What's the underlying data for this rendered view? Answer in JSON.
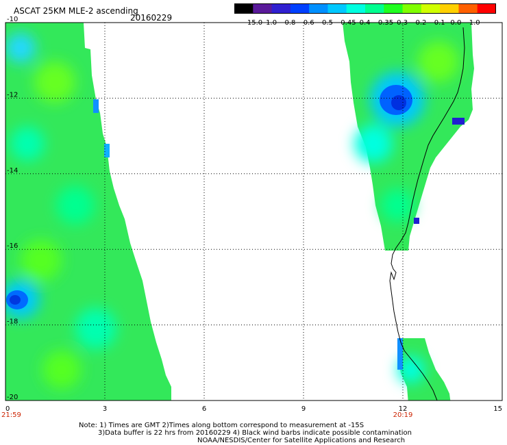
{
  "header": {
    "title": "ASCAT 25KM MLE-2 ascending",
    "date": "20160229"
  },
  "colorbar": {
    "labels": [
      "-15.0",
      "-1.0",
      "-0.8",
      "-0.6",
      "-0.5",
      "-0.45",
      "-0.4",
      "-0.35",
      "-0.3",
      "-0.2",
      "-0.1",
      "0.0",
      "1.0"
    ],
    "colors": [
      "#000000",
      "#5a1a9a",
      "#3020d0",
      "#0040ff",
      "#0090ff",
      "#00c8ff",
      "#00ffe0",
      "#00ff90",
      "#20ff20",
      "#80ff00",
      "#d0ff00",
      "#ffd000",
      "#ff6000",
      "#ff0000"
    ]
  },
  "map": {
    "x_ticks": [
      "0",
      "3",
      "6",
      "9",
      "12",
      "15"
    ],
    "y_ticks": [
      "-10",
      "-12",
      "-14",
      "-16",
      "-18",
      "-20"
    ],
    "x_range": [
      0,
      15
    ],
    "y_range": [
      -20,
      -10
    ],
    "time_labels": [
      {
        "x": 0,
        "text": "21:59"
      },
      {
        "x": 12,
        "text": "20:19"
      }
    ],
    "grid": true
  },
  "notes": [
    "Note: 1) Times are GMT 2)Times along bottom correspond to measurement at -15S",
    "3)Data buffer is 22 hrs from 20160229 4) Black wind barbs indicate possible contamination",
    "NOAA/NESDIS/Center for Satellite Applications and Research"
  ]
}
